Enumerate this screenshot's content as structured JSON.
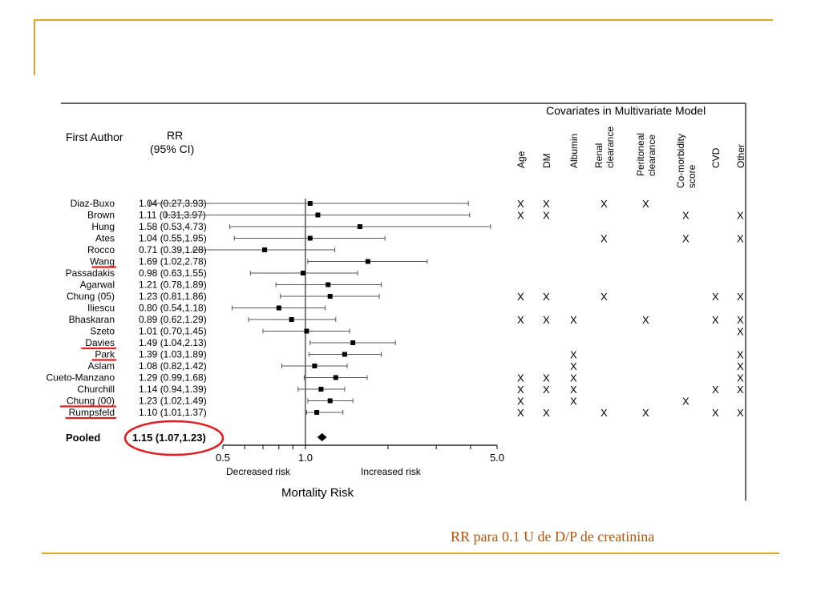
{
  "caption": "RR para 0.1 U de D/P de creatinina",
  "colors": {
    "accent": "#d9a82e",
    "highlight": "#e02020",
    "caption": "#b8550f"
  },
  "chart_data": {
    "type": "forest",
    "xlabel": "Mortality Risk",
    "xscale": "log",
    "xlim": [
      0.5,
      5.0
    ],
    "ticks": [
      0.5,
      1.0,
      5.0
    ],
    "tick_labels": [
      "0.5",
      "1.0",
      "5.0"
    ],
    "left_note": "Decreased risk",
    "right_note": "Increased risk",
    "author_header": "First Author",
    "rr_header_1": "RR",
    "rr_header_2": "(95% CI)",
    "covariates_header": "Covariates in  Multivariate Model",
    "covariate_columns": [
      "Age",
      "DM",
      "Albumin",
      "Renal clearance",
      "Peritoneal clearance",
      "Co-morbidity score",
      "CVD",
      "Other"
    ],
    "studies": [
      {
        "author": "Diaz-Buxo",
        "label": "1.04 (0.27,3.93)",
        "rr": 1.04,
        "lo": 0.27,
        "hi": 3.93,
        "cov": [
          1,
          1,
          0,
          1,
          1,
          0,
          0,
          0
        ],
        "underline": false
      },
      {
        "author": "Brown",
        "label": "1.11 (0.31,3.97)",
        "rr": 1.11,
        "lo": 0.31,
        "hi": 3.97,
        "cov": [
          1,
          1,
          0,
          0,
          0,
          1,
          0,
          1
        ],
        "underline": false
      },
      {
        "author": "Hung",
        "label": "1.58 (0.53,4.73)",
        "rr": 1.58,
        "lo": 0.53,
        "hi": 4.73,
        "cov": [
          0,
          0,
          0,
          0,
          0,
          0,
          0,
          0
        ],
        "underline": false
      },
      {
        "author": "Ates",
        "label": "1.04 (0.55,1.95)",
        "rr": 1.04,
        "lo": 0.55,
        "hi": 1.95,
        "cov": [
          0,
          0,
          0,
          1,
          0,
          1,
          0,
          1
        ],
        "underline": false
      },
      {
        "author": "Rocco",
        "label": "0.71 (0.39,1.28)",
        "rr": 0.71,
        "lo": 0.39,
        "hi": 1.28,
        "cov": [
          0,
          0,
          0,
          0,
          0,
          0,
          0,
          0
        ],
        "underline": false
      },
      {
        "author": "Wang",
        "label": "1.69 (1.02,2.78)",
        "rr": 1.69,
        "lo": 1.02,
        "hi": 2.78,
        "cov": [
          0,
          0,
          0,
          0,
          0,
          0,
          0,
          0
        ],
        "underline": true
      },
      {
        "author": "Passadakis",
        "label": "0.98 (0.63,1.55)",
        "rr": 0.98,
        "lo": 0.63,
        "hi": 1.55,
        "cov": [
          0,
          0,
          0,
          0,
          0,
          0,
          0,
          0
        ],
        "underline": false
      },
      {
        "author": "Agarwal",
        "label": "1.21 (0.78,1.89)",
        "rr": 1.21,
        "lo": 0.78,
        "hi": 1.89,
        "cov": [
          0,
          0,
          0,
          0,
          0,
          0,
          0,
          0
        ],
        "underline": false
      },
      {
        "author": "Chung (05)",
        "label": "1.23 (0.81,1.86)",
        "rr": 1.23,
        "lo": 0.81,
        "hi": 1.86,
        "cov": [
          1,
          1,
          0,
          1,
          0,
          0,
          1,
          1
        ],
        "underline": false
      },
      {
        "author": "Iliescu",
        "label": "0.80 (0.54,1.18)",
        "rr": 0.8,
        "lo": 0.54,
        "hi": 1.18,
        "cov": [
          0,
          0,
          0,
          0,
          0,
          0,
          0,
          0
        ],
        "underline": false
      },
      {
        "author": "Bhaskaran",
        "label": "0.89 (0.62,1.29)",
        "rr": 0.89,
        "lo": 0.62,
        "hi": 1.29,
        "cov": [
          1,
          1,
          1,
          0,
          1,
          0,
          1,
          1
        ],
        "underline": false
      },
      {
        "author": "Szeto",
        "label": "1.01 (0.70,1.45)",
        "rr": 1.01,
        "lo": 0.7,
        "hi": 1.45,
        "cov": [
          0,
          0,
          0,
          0,
          0,
          0,
          0,
          1
        ],
        "underline": false
      },
      {
        "author": "Davies",
        "label": "1.49 (1.04,2.13)",
        "rr": 1.49,
        "lo": 1.04,
        "hi": 2.13,
        "cov": [
          0,
          0,
          0,
          0,
          0,
          0,
          0,
          0
        ],
        "underline": true
      },
      {
        "author": "Park",
        "label": "1.39 (1.03,1.89)",
        "rr": 1.39,
        "lo": 1.03,
        "hi": 1.89,
        "cov": [
          0,
          0,
          1,
          0,
          0,
          0,
          0,
          1
        ],
        "underline": true
      },
      {
        "author": "Aslam",
        "label": "1.08 (0.82,1.42)",
        "rr": 1.08,
        "lo": 0.82,
        "hi": 1.42,
        "cov": [
          0,
          0,
          1,
          0,
          0,
          0,
          0,
          1
        ],
        "underline": false
      },
      {
        "author": "Cueto-Manzano",
        "label": "1.29 (0.99,1.68)",
        "rr": 1.29,
        "lo": 0.99,
        "hi": 1.68,
        "cov": [
          1,
          1,
          1,
          0,
          0,
          0,
          0,
          1
        ],
        "underline": false
      },
      {
        "author": "Churchill",
        "label": "1.14 (0.94,1.39)",
        "rr": 1.14,
        "lo": 0.94,
        "hi": 1.39,
        "cov": [
          1,
          1,
          1,
          0,
          0,
          0,
          1,
          1
        ],
        "underline": false
      },
      {
        "author": "Chung (00)",
        "label": "1.23 (1.02,1.49)",
        "rr": 1.23,
        "lo": 1.02,
        "hi": 1.49,
        "cov": [
          1,
          0,
          1,
          0,
          0,
          1,
          0,
          0
        ],
        "underline": true
      },
      {
        "author": "Rumpsfeld",
        "label": "1.10 (1.01,1.37)",
        "rr": 1.1,
        "lo": 1.01,
        "hi": 1.37,
        "cov": [
          1,
          1,
          0,
          1,
          1,
          0,
          1,
          1
        ],
        "underline": true
      }
    ],
    "pooled": {
      "author": "Pooled",
      "label": "1.15 (1.07,1.23)",
      "rr": 1.15,
      "lo": 1.07,
      "hi": 1.23
    }
  }
}
